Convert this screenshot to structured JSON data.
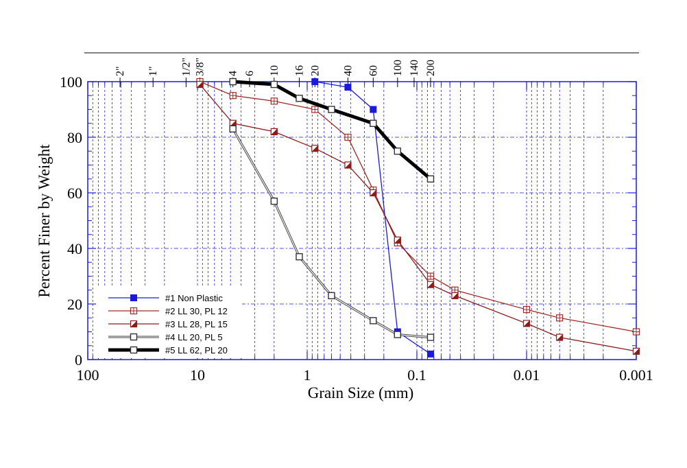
{
  "chart_data": {
    "type": "line",
    "xlabel": "Grain Size (mm)",
    "ylabel": "Percent Finer by Weight",
    "x_scale": "log",
    "x_reversed": true,
    "xlim": [
      100,
      0.001
    ],
    "ylim": [
      0,
      100
    ],
    "x_ticks": [
      {
        "value": 100,
        "label": "100"
      },
      {
        "value": 10,
        "label": "10"
      },
      {
        "value": 1,
        "label": "1"
      },
      {
        "value": 0.1,
        "label": "0.1"
      },
      {
        "value": 0.01,
        "label": "0.01"
      },
      {
        "value": 0.001,
        "label": "0.001"
      }
    ],
    "y_ticks": [
      {
        "value": 0,
        "label": "0"
      },
      {
        "value": 20,
        "label": "20"
      },
      {
        "value": 40,
        "label": "40"
      },
      {
        "value": 60,
        "label": "60"
      },
      {
        "value": 80,
        "label": "80"
      },
      {
        "value": 100,
        "label": "100"
      }
    ],
    "sieve_sizes": [
      {
        "label": "2\"",
        "mm": 50.8
      },
      {
        "label": "1\"",
        "mm": 25.4
      },
      {
        "label": "1/2\"",
        "mm": 12.7
      },
      {
        "label": "3/8\"",
        "mm": 9.5
      },
      {
        "label": "4",
        "mm": 4.75
      },
      {
        "label": "6",
        "mm": 3.35
      },
      {
        "label": "10",
        "mm": 2.0
      },
      {
        "label": "16",
        "mm": 1.18
      },
      {
        "label": "20",
        "mm": 0.85
      },
      {
        "label": "40",
        "mm": 0.425
      },
      {
        "label": "60",
        "mm": 0.25
      },
      {
        "label": "100",
        "mm": 0.15
      },
      {
        "label": "140",
        "mm": 0.106
      },
      {
        "label": "200",
        "mm": 0.075
      }
    ],
    "grid": true,
    "legend_position": "bottom-left",
    "series": [
      {
        "name": "#1 Non Plastic",
        "color": "#1a1adb",
        "marker": "square-filled",
        "line_width": 1.3,
        "x": [
          0.85,
          0.425,
          0.25,
          0.15,
          0.075
        ],
        "y": [
          100,
          98,
          90,
          10,
          2
        ]
      },
      {
        "name": "#2 LL 30, PL 12",
        "color": "#a02828",
        "marker": "square-cross",
        "line_width": 1.3,
        "x": [
          9.5,
          4.75,
          2.0,
          0.85,
          0.425,
          0.25,
          0.15,
          0.075,
          0.045,
          0.01,
          0.005,
          0.001
        ],
        "y": [
          100,
          95,
          93,
          90,
          80,
          61,
          42,
          30,
          25,
          18,
          15,
          10
        ]
      },
      {
        "name": "#3 LL 28, PL 15",
        "color": "#8a1c1c",
        "marker": "square-half",
        "line_width": 1.3,
        "x": [
          9.5,
          4.75,
          2.0,
          0.85,
          0.425,
          0.25,
          0.15,
          0.075,
          0.045,
          0.01,
          0.005,
          0.001
        ],
        "y": [
          99,
          85,
          82,
          76,
          70,
          60,
          43,
          27,
          23,
          13,
          8,
          3
        ]
      },
      {
        "name": "#4 LL 20, PL 5",
        "color": "#555555",
        "marker": "square-open",
        "line_width": 2.2,
        "x": [
          4.75,
          2.0,
          1.18,
          0.6,
          0.25,
          0.15,
          0.075
        ],
        "y": [
          83,
          57,
          37,
          23,
          14,
          9,
          8
        ]
      },
      {
        "name": "#5 LL 62, PL 20",
        "color": "#000000",
        "marker": "square-open",
        "line_width": 5,
        "x": [
          4.75,
          2.0,
          1.18,
          0.6,
          0.25,
          0.15,
          0.075
        ],
        "y": [
          100,
          99,
          94,
          90,
          85,
          75,
          65
        ]
      }
    ]
  }
}
